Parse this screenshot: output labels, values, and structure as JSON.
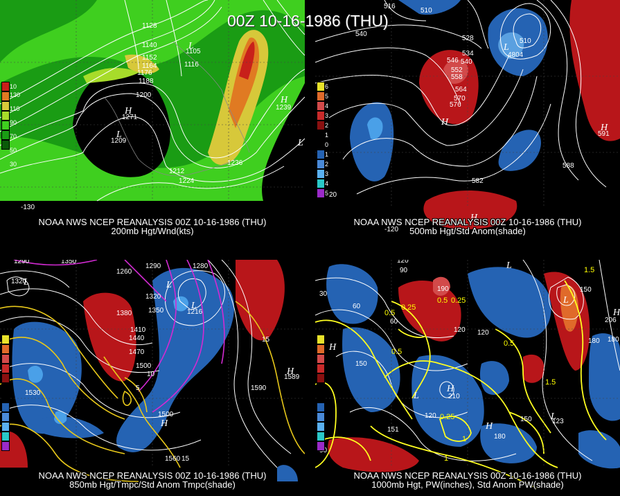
{
  "title": "00Z 10-16-1986 (THU)",
  "panels": [
    {
      "line1": "NOAA NWS NCEP REANALYSIS 00Z 10-16-1986 (THU)",
      "line2": "200mb Hgt/Wnd(kts)",
      "legend": [
        "10",
        "130",
        "110",
        "90",
        "70",
        "50",
        "30"
      ],
      "labels": [
        "1128",
        "1140",
        "1152",
        "1164",
        "1176",
        "1188",
        "1200",
        "1116",
        "1105",
        "1212",
        "1224",
        "1236",
        "1271",
        "1209",
        "1239"
      ],
      "lon": [
        "-130"
      ]
    },
    {
      "line1": "NOAA NWS NCEP REANALYSIS 00Z 10-16-1986 (THU)",
      "line2": "500mb Hgt/Std Anom(shade)",
      "legend": [
        "6",
        "5",
        "4",
        "3",
        "2",
        "1",
        "0",
        "1",
        "2",
        "3",
        "4",
        "5"
      ],
      "labels": [
        "516",
        "510",
        "540",
        "528",
        "534",
        "546",
        "540",
        "552",
        "558",
        "564",
        "570",
        "576",
        "510",
        "4804",
        "591",
        "588",
        "582",
        "20"
      ],
      "lon": [
        "-120"
      ]
    },
    {
      "line1": "NOAA NWS NCEP REANALYSIS 00Z 10-16-1986 (THU)",
      "line2": "850mb Hgt/Tmpc/Std Anom Tmpc(shade)",
      "labels": [
        "1290",
        "1350",
        "1320",
        "1260",
        "1290",
        "1320",
        "1350",
        "1380",
        "1410",
        "1440",
        "1470",
        "1500",
        "1530",
        "1560",
        "1590",
        "1560",
        "15",
        "10",
        "5",
        "1216",
        "1280",
        "1530",
        "1589",
        "1500",
        "1280",
        "1350",
        "1320",
        "1290",
        "1320"
      ]
    },
    {
      "line1": "NOAA NWS NCEP REANALYSIS 00Z 10-16-1986 (THU)",
      "line2": "1000mb Hgt, PW(inches), Std Anom PW(shade)",
      "labels": [
        "120",
        "90",
        "30",
        "60",
        "0.25",
        "0.5",
        "0.5",
        "0.25",
        "60",
        "120",
        "150",
        "180",
        "120",
        "0.5",
        "0.25",
        "210",
        "150",
        "180",
        "190",
        "90",
        "1.5",
        "1",
        "206",
        "180",
        "150",
        "1.5",
        "120",
        "151",
        "123",
        "0.5",
        "1"
      ]
    }
  ]
}
